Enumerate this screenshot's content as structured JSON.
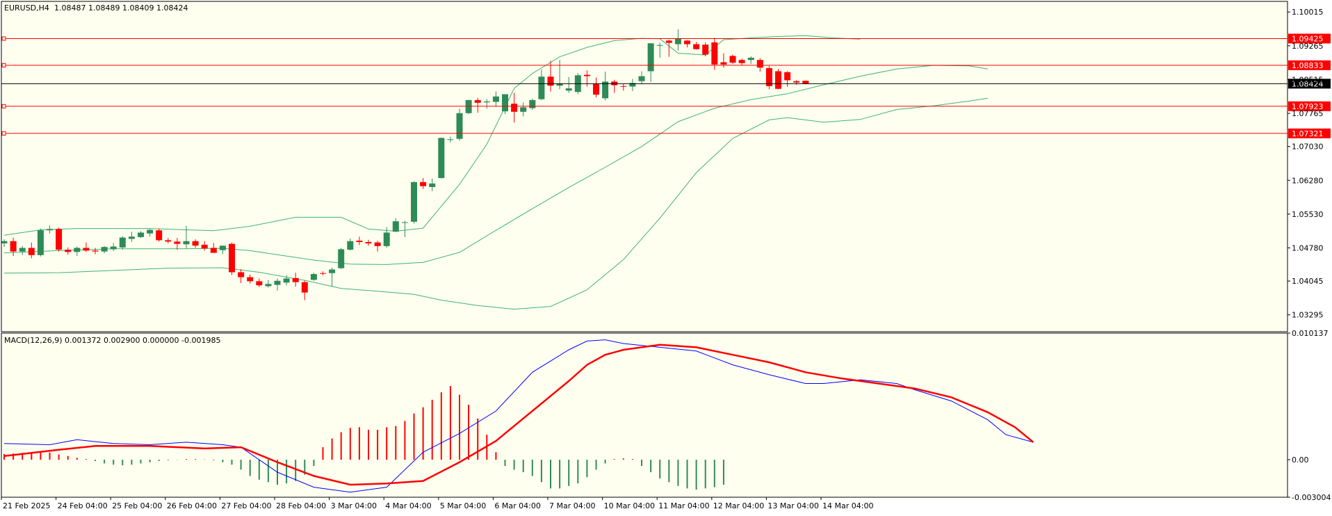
{
  "colors": {
    "background": "#fffff0",
    "axis_bg": "#ffffff",
    "bull": "#2e8b57",
    "bear": "#ff0000",
    "bands": "#3cb371",
    "level": "#ff0000",
    "current": "#000000",
    "macd_line": "#0000ff",
    "signal_line": "#ff0000"
  },
  "header": {
    "symbol": "EURUSD,H4",
    "ohlc": "1.08487 1.08489 1.08409 1.08424",
    "macd": "MACD(12,26,9) 0.001372 0.002900 0.000000 -0.001985"
  },
  "chart_data": [
    {
      "type": "candlestick",
      "name": "price",
      "ylim": [
        1.0292,
        1.1025
      ],
      "price_ticks": [
        "1.10015",
        "1.09265",
        "1.08515",
        "1.07765",
        "1.07030",
        "1.06280",
        "1.05530",
        "1.04780",
        "1.04045",
        "1.03295"
      ],
      "x_labels": [
        "21 Feb 2025",
        "24 Feb 04:00",
        "25 Feb 04:00",
        "26 Feb 04:00",
        "27 Feb 04:00",
        "28 Feb 04:00",
        "3 Mar 04:00",
        "4 Mar 04:00",
        "5 Mar 04:00",
        "6 Mar 04:00",
        "7 Mar 04:00",
        "10 Mar 04:00",
        "11 Mar 04:00",
        "12 Mar 04:00",
        "13 Mar 04:00",
        "14 Mar 04:00"
      ],
      "levels": [
        {
          "value": 1.09425,
          "label": "1.09425",
          "style": "red"
        },
        {
          "value": 1.08833,
          "label": "1.08833",
          "style": "red"
        },
        {
          "value": 1.08424,
          "label": "1.08424",
          "style": "current"
        },
        {
          "value": 1.07923,
          "label": "1.07923",
          "style": "red"
        },
        {
          "value": 1.07321,
          "label": "1.07321",
          "style": "red"
        }
      ],
      "candles": [
        [
          1.0488,
          1.0497,
          1.048,
          1.0493
        ],
        [
          1.0493,
          1.0501,
          1.046,
          1.047
        ],
        [
          1.047,
          1.0482,
          1.0462,
          1.0478
        ],
        [
          1.0478,
          1.049,
          1.0455,
          1.0462
        ],
        [
          1.0462,
          1.0521,
          1.0459,
          1.0517
        ],
        [
          1.0517,
          1.0528,
          1.051,
          1.052
        ],
        [
          1.052,
          1.0523,
          1.047,
          1.0474
        ],
        [
          1.0474,
          1.0479,
          1.0463,
          1.0469
        ],
        [
          1.0469,
          1.0481,
          1.046,
          1.0478
        ],
        [
          1.0478,
          1.049,
          1.0469,
          1.0472
        ],
        [
          1.0472,
          1.0478,
          1.0464,
          1.047
        ],
        [
          1.047,
          1.0482,
          1.0466,
          1.048
        ],
        [
          1.0475,
          1.0489,
          1.0471,
          1.0481
        ],
        [
          1.0479,
          1.0504,
          1.0474,
          1.0501
        ],
        [
          1.0498,
          1.0514,
          1.0491,
          1.0503
        ],
        [
          1.0502,
          1.0515,
          1.05,
          1.0512
        ],
        [
          1.051,
          1.052,
          1.0503,
          1.0518
        ],
        [
          1.0517,
          1.0521,
          1.0492,
          1.0495
        ],
        [
          1.0495,
          1.05,
          1.0488,
          1.0492
        ],
        [
          1.0492,
          1.05,
          1.0474,
          1.0487
        ],
        [
          1.0486,
          1.0527,
          1.0477,
          1.0493
        ],
        [
          1.0493,
          1.0497,
          1.0478,
          1.0483
        ],
        [
          1.0485,
          1.0493,
          1.0472,
          1.0477
        ],
        [
          1.0478,
          1.0489,
          1.0469,
          1.0467
        ],
        [
          1.0473,
          1.0482,
          1.0464,
          1.0483
        ],
        [
          1.0487,
          1.049,
          1.0418,
          1.0424
        ],
        [
          1.0424,
          1.0431,
          1.04,
          1.0413
        ],
        [
          1.0413,
          1.0419,
          1.0399,
          1.0404
        ],
        [
          1.0404,
          1.041,
          1.0391,
          1.0395
        ],
        [
          1.0393,
          1.0407,
          1.039,
          1.0398
        ],
        [
          1.0396,
          1.041,
          1.0383,
          1.0405
        ],
        [
          1.0401,
          1.0417,
          1.0395,
          1.041
        ],
        [
          1.0411,
          1.0423,
          1.0392,
          1.0402
        ],
        [
          1.0402,
          1.0405,
          1.0362,
          1.0379
        ],
        [
          1.0407,
          1.0423,
          1.0405,
          1.042
        ],
        [
          1.0422,
          1.0426,
          1.0417,
          1.0421
        ],
        [
          1.0422,
          1.0434,
          1.0392,
          1.043
        ],
        [
          1.0433,
          1.0478,
          1.0431,
          1.0475
        ],
        [
          1.0474,
          1.0499,
          1.0472,
          1.0493
        ],
        [
          1.0494,
          1.0503,
          1.0484,
          1.0491
        ],
        [
          1.0491,
          1.0496,
          1.0483,
          1.0488
        ],
        [
          1.049,
          1.0494,
          1.047,
          1.0482
        ],
        [
          1.0482,
          1.0524,
          1.0478,
          1.0512
        ],
        [
          1.0514,
          1.0544,
          1.0513,
          1.0537
        ],
        [
          1.0534,
          1.0538,
          1.0502,
          1.0535
        ],
        [
          1.0536,
          1.0626,
          1.0532,
          1.0624
        ],
        [
          1.0624,
          1.0633,
          1.0609,
          1.0615
        ],
        [
          1.0613,
          1.0632,
          1.0604,
          1.0621
        ],
        [
          1.0633,
          1.0723,
          1.0632,
          1.0722
        ],
        [
          1.0719,
          1.0725,
          1.0712,
          1.0719
        ],
        [
          1.072,
          1.0787,
          1.0716,
          1.0777
        ],
        [
          1.0777,
          1.0807,
          1.0775,
          1.0806
        ],
        [
          1.0806,
          1.0811,
          1.0778,
          1.08
        ],
        [
          1.0801,
          1.0808,
          1.0787,
          1.0803
        ],
        [
          1.0802,
          1.0825,
          1.0791,
          1.0814
        ],
        [
          1.0781,
          1.0819,
          1.0775,
          1.0819
        ],
        [
          1.0798,
          1.0822,
          1.0756,
          1.078
        ],
        [
          1.078,
          1.0801,
          1.077,
          1.079
        ],
        [
          1.0788,
          1.0809,
          1.0784,
          1.0806
        ],
        [
          1.0808,
          1.0874,
          1.0806,
          1.0858
        ],
        [
          1.0858,
          1.0893,
          1.0825,
          1.0838
        ],
        [
          1.0838,
          1.0895,
          1.083,
          1.0843
        ],
        [
          1.0827,
          1.0857,
          1.0822,
          1.0832
        ],
        [
          1.0824,
          1.0866,
          1.0819,
          1.0861
        ],
        [
          1.0862,
          1.0872,
          1.0836,
          1.0859
        ],
        [
          1.0842,
          1.0856,
          1.0812,
          1.0818
        ],
        [
          1.081,
          1.0869,
          1.0805,
          1.0847
        ],
        [
          1.0847,
          1.0851,
          1.0822,
          1.0839
        ],
        [
          1.0837,
          1.0842,
          1.0827,
          1.0836
        ],
        [
          1.0836,
          1.0853,
          1.0826,
          1.0844
        ],
        [
          1.0848,
          1.087,
          1.0841,
          1.0859
        ],
        [
          1.087,
          1.0925,
          1.0846,
          1.0932
        ],
        [
          1.0928,
          1.0933,
          1.09,
          1.0928
        ],
        [
          1.0938,
          1.094,
          1.0902,
          1.0933
        ],
        [
          1.093,
          1.0963,
          1.0916,
          1.0943
        ],
        [
          1.0938,
          1.0939,
          1.0923,
          1.093
        ],
        [
          1.093,
          1.0935,
          1.0918,
          1.0919
        ],
        [
          1.0929,
          1.0934,
          1.0903,
          1.0907
        ],
        [
          1.0934,
          1.0944,
          1.0873,
          1.0885
        ],
        [
          1.089,
          1.091,
          1.0878,
          1.0885
        ],
        [
          1.0904,
          1.0907,
          1.0886,
          1.0889
        ],
        [
          1.0895,
          1.0898,
          1.0883,
          1.0888
        ],
        [
          1.0895,
          1.0903,
          1.0886,
          1.09
        ],
        [
          1.0895,
          1.0899,
          1.0869,
          1.0878
        ],
        [
          1.0877,
          1.0882,
          1.083,
          1.0837
        ],
        [
          1.087,
          1.0875,
          1.083,
          1.0831
        ],
        [
          1.0868,
          1.087,
          1.0835,
          1.085
        ],
        [
          1.0848,
          1.085,
          1.084,
          1.0845
        ],
        [
          1.0849,
          1.0849,
          1.0841,
          1.0842
        ]
      ],
      "bollinger": {
        "upper": [
          [
            0,
            1.0506
          ],
          [
            4,
            1.0518
          ],
          [
            8,
            1.0521
          ],
          [
            16,
            1.0521
          ],
          [
            23,
            1.0516
          ],
          [
            27,
            1.0526
          ],
          [
            32,
            1.0546
          ],
          [
            37,
            1.0546
          ],
          [
            40,
            1.052
          ],
          [
            43,
            1.0515
          ],
          [
            46,
            1.0522
          ],
          [
            50,
            1.0619
          ],
          [
            53,
            1.0708
          ],
          [
            56,
            1.0832
          ],
          [
            58,
            1.0865
          ],
          [
            61,
            1.0902
          ],
          [
            64,
            1.0923
          ],
          [
            67,
            1.0938
          ],
          [
            70,
            1.0943
          ],
          [
            72,
            1.0942
          ],
          [
            74,
            1.091
          ],
          [
            77,
            1.0906
          ],
          [
            79,
            1.094
          ],
          [
            82,
            1.0944
          ],
          [
            85,
            1.0947
          ],
          [
            88,
            1.0949
          ],
          [
            91,
            1.0944
          ],
          [
            94,
            1.0941
          ]
        ],
        "middle": [
          [
            0,
            1.0467
          ],
          [
            6,
            1.0472
          ],
          [
            12,
            1.0476
          ],
          [
            18,
            1.0476
          ],
          [
            24,
            1.0477
          ],
          [
            27,
            1.0472
          ],
          [
            30,
            1.0463
          ],
          [
            34,
            1.0451
          ],
          [
            38,
            1.0442
          ],
          [
            42,
            1.0441
          ],
          [
            46,
            1.0446
          ],
          [
            50,
            1.0468
          ],
          [
            54,
            1.0517
          ],
          [
            58,
            1.0565
          ],
          [
            62,
            1.0612
          ],
          [
            66,
            1.0657
          ],
          [
            70,
            1.0703
          ],
          [
            74,
            1.0758
          ],
          [
            78,
            1.0788
          ],
          [
            82,
            1.0807
          ],
          [
            86,
            1.082
          ],
          [
            90,
            1.084
          ],
          [
            94,
            1.0859
          ],
          [
            98,
            1.0875
          ],
          [
            102,
            1.0883
          ],
          [
            106,
            1.0882
          ],
          [
            108,
            1.0875
          ]
        ],
        "lower": [
          [
            0,
            1.0422
          ],
          [
            6,
            1.0423
          ],
          [
            12,
            1.0428
          ],
          [
            18,
            1.0433
          ],
          [
            24,
            1.0434
          ],
          [
            28,
            1.0424
          ],
          [
            33,
            1.0406
          ],
          [
            37,
            1.0388
          ],
          [
            41,
            1.0382
          ],
          [
            45,
            1.0375
          ],
          [
            48,
            1.0362
          ],
          [
            52,
            1.035
          ],
          [
            56,
            1.0342
          ],
          [
            60,
            1.0348
          ],
          [
            64,
            1.0385
          ],
          [
            68,
            1.0452
          ],
          [
            72,
            1.0544
          ],
          [
            76,
            1.0645
          ],
          [
            80,
            1.0721
          ],
          [
            84,
            1.0762
          ],
          [
            86,
            1.0767
          ],
          [
            90,
            1.0757
          ],
          [
            94,
            1.0763
          ],
          [
            98,
            1.0785
          ],
          [
            102,
            1.0793
          ],
          [
            106,
            1.0804
          ],
          [
            108,
            1.081
          ]
        ]
      }
    },
    {
      "type": "macd",
      "name": "MACD(12,26,9)",
      "ylim": [
        -0.003004,
        0.010137
      ],
      "y_ticks": [
        "0.010137",
        "0.00",
        "-0.003004"
      ],
      "histogram": [
        0.00045,
        0.0005,
        0.00055,
        0.00058,
        0.0006,
        0.00058,
        0.00042,
        0.0003,
        0.00015,
        5e-05,
        -0.0001,
        -0.0003,
        -0.0004,
        -0.00045,
        -0.0004,
        -0.0003,
        -0.0002,
        -0.0001,
        -5e-05,
        -2e-05,
        5e-05,
        5e-05,
        2e-05,
        -5e-05,
        -0.0002,
        -0.0004,
        -0.0008,
        -0.0013,
        -0.0016,
        -0.0018,
        -0.002,
        -0.0019,
        -0.0017,
        -0.0012,
        -0.0005,
        0.001,
        0.0017,
        0.0022,
        0.00255,
        0.0026,
        0.0024,
        0.0024,
        0.0026,
        0.0027,
        0.0031,
        0.0037,
        0.0042,
        0.0048,
        0.0054,
        0.0059,
        0.0052,
        0.0044,
        0.0033,
        0.002,
        0.0006,
        -0.0005,
        -0.0008,
        -0.001,
        -0.0013,
        -0.0018,
        -0.0023,
        -0.0023,
        -0.0021,
        -0.0019,
        -0.0014,
        -0.0008,
        -0.0003,
        5e-05,
        0.0001,
        5e-05,
        -0.0005,
        -0.001,
        -0.0015,
        -0.0018,
        -0.0021,
        -0.0023,
        -0.0024,
        -0.0023,
        -0.0022,
        -0.002
      ],
      "macd_line": [
        [
          0,
          0.0013
        ],
        [
          5,
          0.0012
        ],
        [
          8,
          0.0016
        ],
        [
          12,
          0.0013
        ],
        [
          16,
          0.0012
        ],
        [
          20,
          0.0014
        ],
        [
          24,
          0.0012
        ],
        [
          26,
          0.001
        ],
        [
          30,
          -0.001
        ],
        [
          34,
          -0.0022
        ],
        [
          38,
          -0.0026
        ],
        [
          42,
          -0.0022
        ],
        [
          46,
          0.0006
        ],
        [
          50,
          0.0021
        ],
        [
          54,
          0.0039
        ],
        [
          58,
          0.007
        ],
        [
          62,
          0.0088
        ],
        [
          64,
          0.0095
        ],
        [
          66,
          0.0096
        ],
        [
          68,
          0.0093
        ],
        [
          72,
          0.009
        ],
        [
          76,
          0.0087
        ],
        [
          80,
          0.0076
        ],
        [
          84,
          0.0068
        ],
        [
          88,
          0.0061
        ],
        [
          90,
          0.0061
        ],
        [
          94,
          0.0064
        ],
        [
          98,
          0.0061
        ],
        [
          100,
          0.0056
        ],
        [
          104,
          0.0047
        ],
        [
          108,
          0.0032
        ],
        [
          110,
          0.002
        ],
        [
          113,
          0.0014
        ]
      ],
      "signal_line": [
        [
          0,
          0.0003
        ],
        [
          6,
          0.0008
        ],
        [
          10,
          0.0011
        ],
        [
          16,
          0.0011
        ],
        [
          22,
          0.0009
        ],
        [
          26,
          0.001
        ],
        [
          30,
          -0.0002
        ],
        [
          34,
          -0.0013
        ],
        [
          38,
          -0.002
        ],
        [
          42,
          -0.0019
        ],
        [
          46,
          -0.0017
        ],
        [
          50,
          -0.0002
        ],
        [
          54,
          0.0015
        ],
        [
          58,
          0.0039
        ],
        [
          62,
          0.0063
        ],
        [
          64,
          0.0076
        ],
        [
          66,
          0.0084
        ],
        [
          68,
          0.0088
        ],
        [
          72,
          0.0092
        ],
        [
          76,
          0.009
        ],
        [
          80,
          0.0084
        ],
        [
          84,
          0.0078
        ],
        [
          88,
          0.007
        ],
        [
          92,
          0.0065
        ],
        [
          96,
          0.0061
        ],
        [
          100,
          0.0057
        ],
        [
          104,
          0.005
        ],
        [
          108,
          0.0038
        ],
        [
          111,
          0.0026
        ],
        [
          113,
          0.0014
        ]
      ]
    }
  ]
}
